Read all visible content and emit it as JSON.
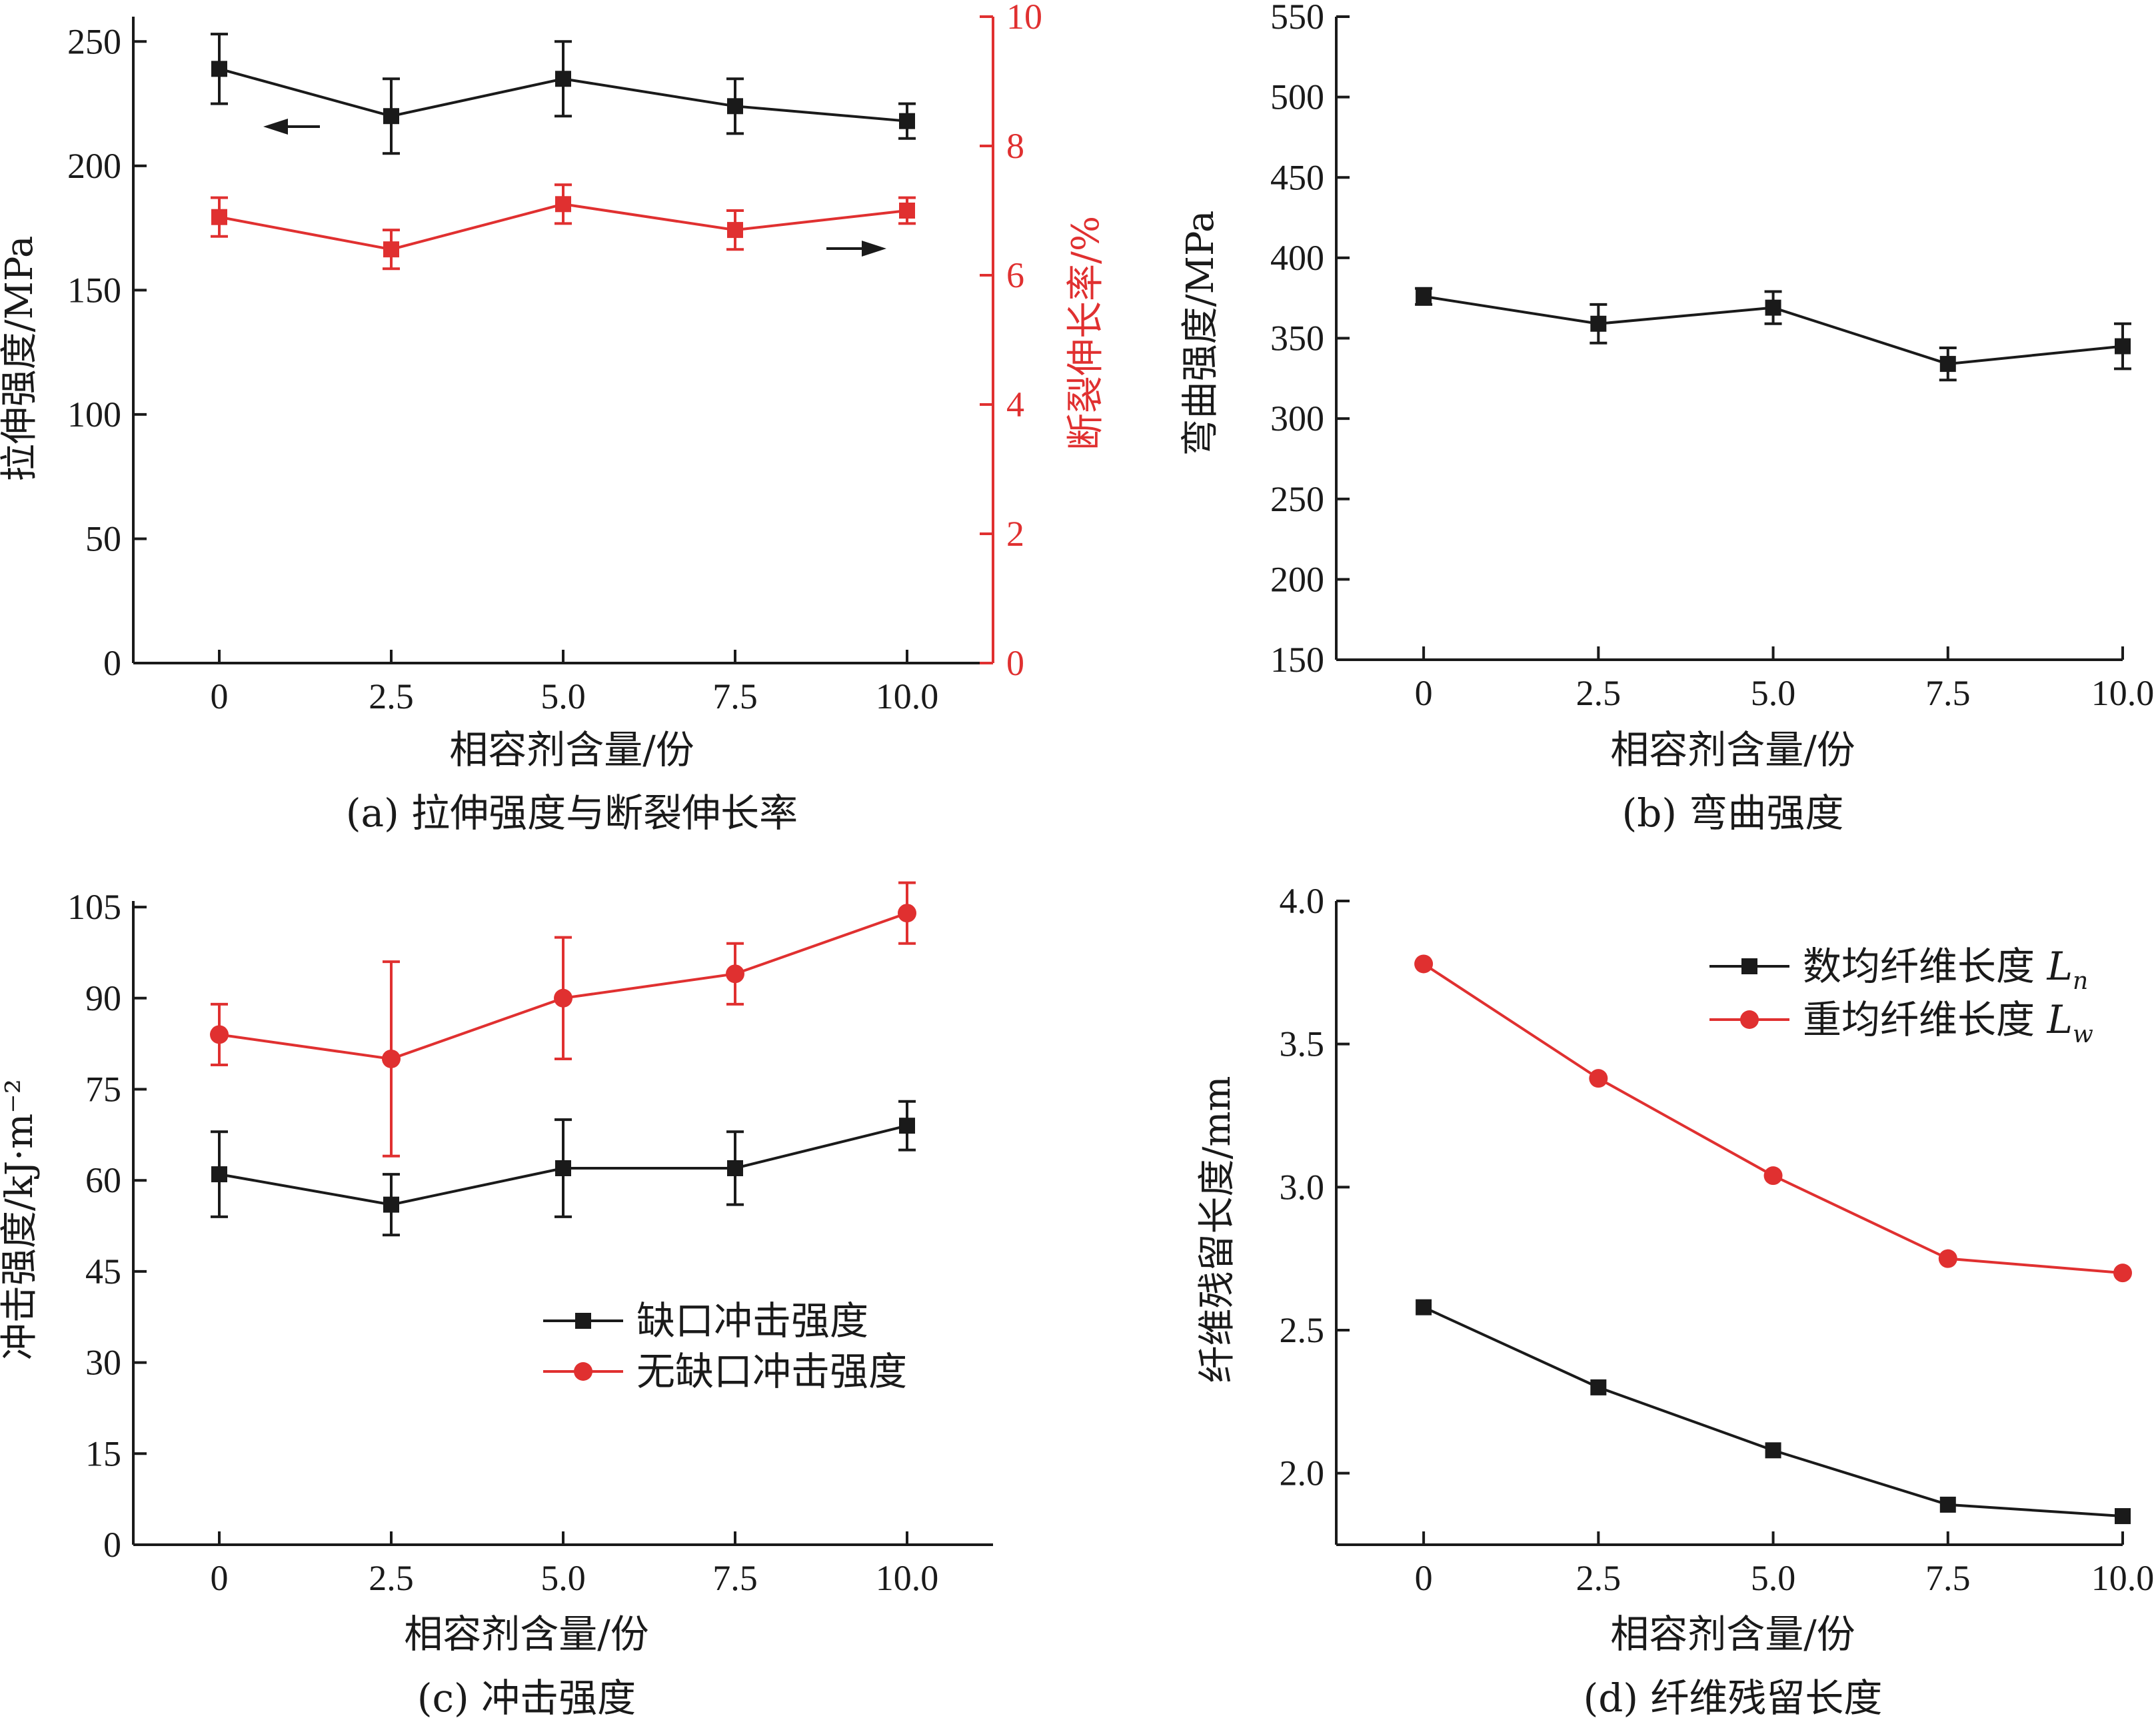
{
  "colors": {
    "black": "#1a1a1a",
    "red": "#e03030"
  },
  "chart_data": [
    {
      "id": "a",
      "type": "line",
      "caption": "(a) 拉伸强度与断裂伸长率",
      "xlabel": "相容剂含量/份",
      "ylabel": "拉伸强度/MPa",
      "y2label": "断裂伸长率/%",
      "x": [
        0,
        2.5,
        5.0,
        7.5,
        10.0
      ],
      "x_tick_labels": [
        "0",
        "2.5",
        "5.0",
        "7.5",
        "10.0"
      ],
      "xlim": [
        -1.25,
        11.25
      ],
      "ylim": [
        0,
        260
      ],
      "y_ticks": [
        0,
        50,
        100,
        150,
        200,
        250
      ],
      "y2lim": [
        0,
        10
      ],
      "y2_ticks": [
        0,
        2,
        4,
        6,
        8,
        10
      ],
      "series": [
        {
          "axis": "left",
          "color": "#1a1a1a",
          "marker": "square",
          "values": [
            239,
            220,
            235,
            224,
            218
          ],
          "err": [
            14,
            15,
            15,
            11,
            7
          ],
          "arrow": "left"
        },
        {
          "axis": "right",
          "color": "#e03030",
          "marker": "square",
          "values": [
            6.9,
            6.4,
            7.1,
            6.7,
            7.0
          ],
          "err": [
            0.3,
            0.3,
            0.3,
            0.3,
            0.2
          ],
          "arrow": "right"
        }
      ]
    },
    {
      "id": "b",
      "type": "line",
      "caption": "(b) 弯曲强度",
      "xlabel": "相容剂含量/份",
      "ylabel": "弯曲强度/MPa",
      "x": [
        0,
        2.5,
        5.0,
        7.5,
        10.0
      ],
      "x_tick_labels": [
        "0",
        "2.5",
        "5.0",
        "7.5",
        "10.0"
      ],
      "xlim": [
        -1.25,
        10.0
      ],
      "ylim": [
        150,
        550
      ],
      "y_ticks": [
        150,
        200,
        250,
        300,
        350,
        400,
        450,
        500,
        550
      ],
      "series": [
        {
          "axis": "left",
          "color": "#1a1a1a",
          "marker": "square",
          "values": [
            376,
            359,
            369,
            334,
            345
          ],
          "err": [
            5,
            12,
            10,
            10,
            14
          ]
        }
      ]
    },
    {
      "id": "c",
      "type": "line",
      "caption": "(c) 冲击强度",
      "xlabel": "相容剂含量/份",
      "ylabel": "冲击强度/kJ·m⁻²",
      "x": [
        0,
        2.5,
        5.0,
        7.5,
        10.0
      ],
      "x_tick_labels": [
        "0",
        "2.5",
        "5.0",
        "7.5",
        "10.0"
      ],
      "xlim": [
        -1.25,
        11.25
      ],
      "ylim": [
        0,
        106
      ],
      "y_ticks": [
        0,
        15,
        30,
        45,
        60,
        75,
        90,
        105
      ],
      "legend": [
        "缺口冲击强度",
        "无缺口冲击强度"
      ],
      "series": [
        {
          "name": "缺口冲击强度",
          "color": "#1a1a1a",
          "marker": "square",
          "values": [
            61,
            56,
            62,
            62,
            69
          ],
          "err": [
            7,
            5,
            8,
            6,
            4
          ]
        },
        {
          "name": "无缺口冲击强度",
          "color": "#e03030",
          "marker": "circle",
          "values": [
            84,
            80,
            90,
            94,
            104
          ],
          "err": [
            5,
            16,
            10,
            5,
            5
          ]
        }
      ]
    },
    {
      "id": "d",
      "type": "line",
      "caption": "(d) 纤维残留长度",
      "xlabel": "相容剂含量/份",
      "ylabel": "纤维残留长度/mm",
      "x": [
        0,
        2.5,
        5.0,
        7.5,
        10.0
      ],
      "x_tick_labels": [
        "0",
        "2.5",
        "5.0",
        "7.5",
        "10.0"
      ],
      "xlim": [
        -1.25,
        10.0
      ],
      "ylim": [
        1.75,
        4.0
      ],
      "y_ticks": [
        2.0,
        2.5,
        3.0,
        3.5,
        4.0
      ],
      "legend": [
        "数均纤维长度Ln",
        "重均纤维长度Lw"
      ],
      "series": [
        {
          "name": "数均纤维长度Ln",
          "color": "#1a1a1a",
          "marker": "square",
          "values": [
            2.58,
            2.3,
            2.08,
            1.89,
            1.85
          ]
        },
        {
          "name": "重均纤维长度Lw",
          "color": "#e03030",
          "marker": "circle",
          "values": [
            3.78,
            3.38,
            3.04,
            2.75,
            2.7
          ]
        }
      ]
    }
  ]
}
